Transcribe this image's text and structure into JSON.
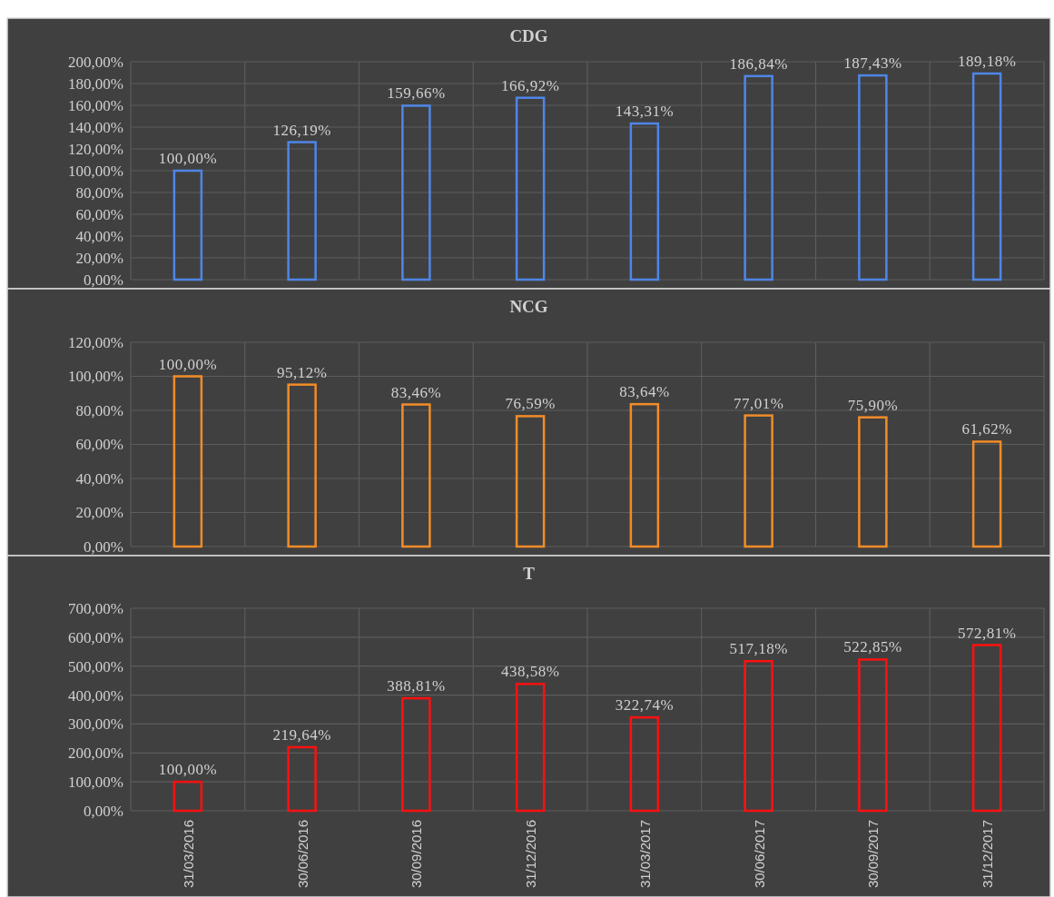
{
  "chart_data": [
    {
      "type": "bar",
      "title": "CDG",
      "categories": [
        null,
        null,
        null,
        null,
        null,
        null,
        null,
        null
      ],
      "series": [
        {
          "color": "#4f86e8",
          "values": [
            100.0,
            126.19,
            159.66,
            166.92,
            143.31,
            186.84,
            187.43,
            189.18
          ],
          "value_labels": [
            "100,00%",
            "126,19%",
            "159,66%",
            "166,92%",
            "143,31%",
            "186,84%",
            "187,43%",
            "189,18%"
          ]
        }
      ],
      "ylim": [
        0,
        200
      ],
      "yticks": [
        {
          "value": 0,
          "label": "0,00%"
        },
        {
          "value": 20,
          "label": "20,00%"
        },
        {
          "value": 40,
          "label": "40,00%"
        },
        {
          "value": 60,
          "label": "60,00%"
        },
        {
          "value": 80,
          "label": "80,00%"
        },
        {
          "value": 100,
          "label": "100,00%"
        },
        {
          "value": 120,
          "label": "120,00%"
        },
        {
          "value": 140,
          "label": "140,00%"
        },
        {
          "value": 160,
          "label": "160,00%"
        },
        {
          "value": 180,
          "label": "180,00%"
        },
        {
          "value": 200,
          "label": "200,00%"
        }
      ],
      "grid": true,
      "tick_labels": "y"
    },
    {
      "type": "bar",
      "title": "NCG",
      "categories": [
        null,
        null,
        null,
        null,
        null,
        null,
        null,
        null
      ],
      "series": [
        {
          "color": "#f28c28",
          "values": [
            100.0,
            95.12,
            83.46,
            76.59,
            83.64,
            77.01,
            75.9,
            61.62
          ],
          "value_labels": [
            "100,00%",
            "95,12%",
            "83,46%",
            "76,59%",
            "83,64%",
            "77,01%",
            "75,90%",
            "61,62%"
          ]
        }
      ],
      "ylim": [
        0,
        120
      ],
      "yticks": [
        {
          "value": 0,
          "label": "0,00%"
        },
        {
          "value": 20,
          "label": "20,00%"
        },
        {
          "value": 40,
          "label": "40,00%"
        },
        {
          "value": 60,
          "label": "60,00%"
        },
        {
          "value": 80,
          "label": "80,00%"
        },
        {
          "value": 100,
          "label": "100,00%"
        },
        {
          "value": 120,
          "label": "120,00%"
        }
      ],
      "grid": true,
      "tick_labels": "y"
    },
    {
      "type": "bar",
      "title": "T",
      "categories": [
        "31/03/2016",
        "30/06/2016",
        "30/09/2016",
        "31/12/2016",
        "31/03/2017",
        "30/06/2017",
        "30/09/2017",
        "31/12/2017"
      ],
      "series": [
        {
          "color": "#ff1010",
          "values": [
            100.0,
            219.64,
            388.81,
            438.58,
            322.74,
            517.18,
            522.85,
            572.81
          ],
          "value_labels": [
            "100,00%",
            "219,64%",
            "388,81%",
            "438,58%",
            "322,74%",
            "517,18%",
            "522,85%",
            "572,81%"
          ]
        }
      ],
      "ylim": [
        0,
        700
      ],
      "yticks": [
        {
          "value": 0,
          "label": "0,00%"
        },
        {
          "value": 100,
          "label": "100,00%"
        },
        {
          "value": 200,
          "label": "200,00%"
        },
        {
          "value": 300,
          "label": "300,00%"
        },
        {
          "value": 400,
          "label": "400,00%"
        },
        {
          "value": 500,
          "label": "500,00%"
        },
        {
          "value": 600,
          "label": "600,00%"
        },
        {
          "value": 700,
          "label": "700,00%"
        }
      ],
      "grid": true
    }
  ]
}
